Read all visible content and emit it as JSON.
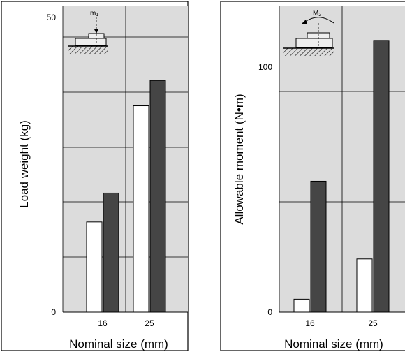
{
  "chart_data": [
    {
      "type": "bar",
      "title": "",
      "xlabel": "Nominal size (mm)",
      "ylabel": "Load weight (kg)",
      "categories": [
        "16",
        "25"
      ],
      "series": [
        {
          "values": [
            15.3,
            35
          ]
        },
        {
          "values": [
            20.2,
            39.3
          ]
        }
      ],
      "ylim": [
        0,
        52
      ],
      "yticks": [
        0,
        50
      ],
      "grid": true,
      "series_colors": [
        "#ffffff",
        "#454545"
      ],
      "inset": {
        "label": "m",
        "label_sub": "1"
      }
    },
    {
      "type": "bar",
      "title": "",
      "xlabel": "Nominal size (mm)",
      "ylabel": "Allowable moment (N•m)",
      "categories": [
        "16",
        "25"
      ],
      "series": [
        {
          "values": [
            5.3,
            21.7
          ]
        },
        {
          "values": [
            53.4,
            110.8
          ]
        }
      ],
      "ylim": [
        0,
        125
      ],
      "yticks": [
        0,
        100
      ],
      "grid": true,
      "series_colors": [
        "#ffffff",
        "#454545"
      ],
      "inset": {
        "label": "M",
        "label_sub": "2"
      }
    }
  ]
}
